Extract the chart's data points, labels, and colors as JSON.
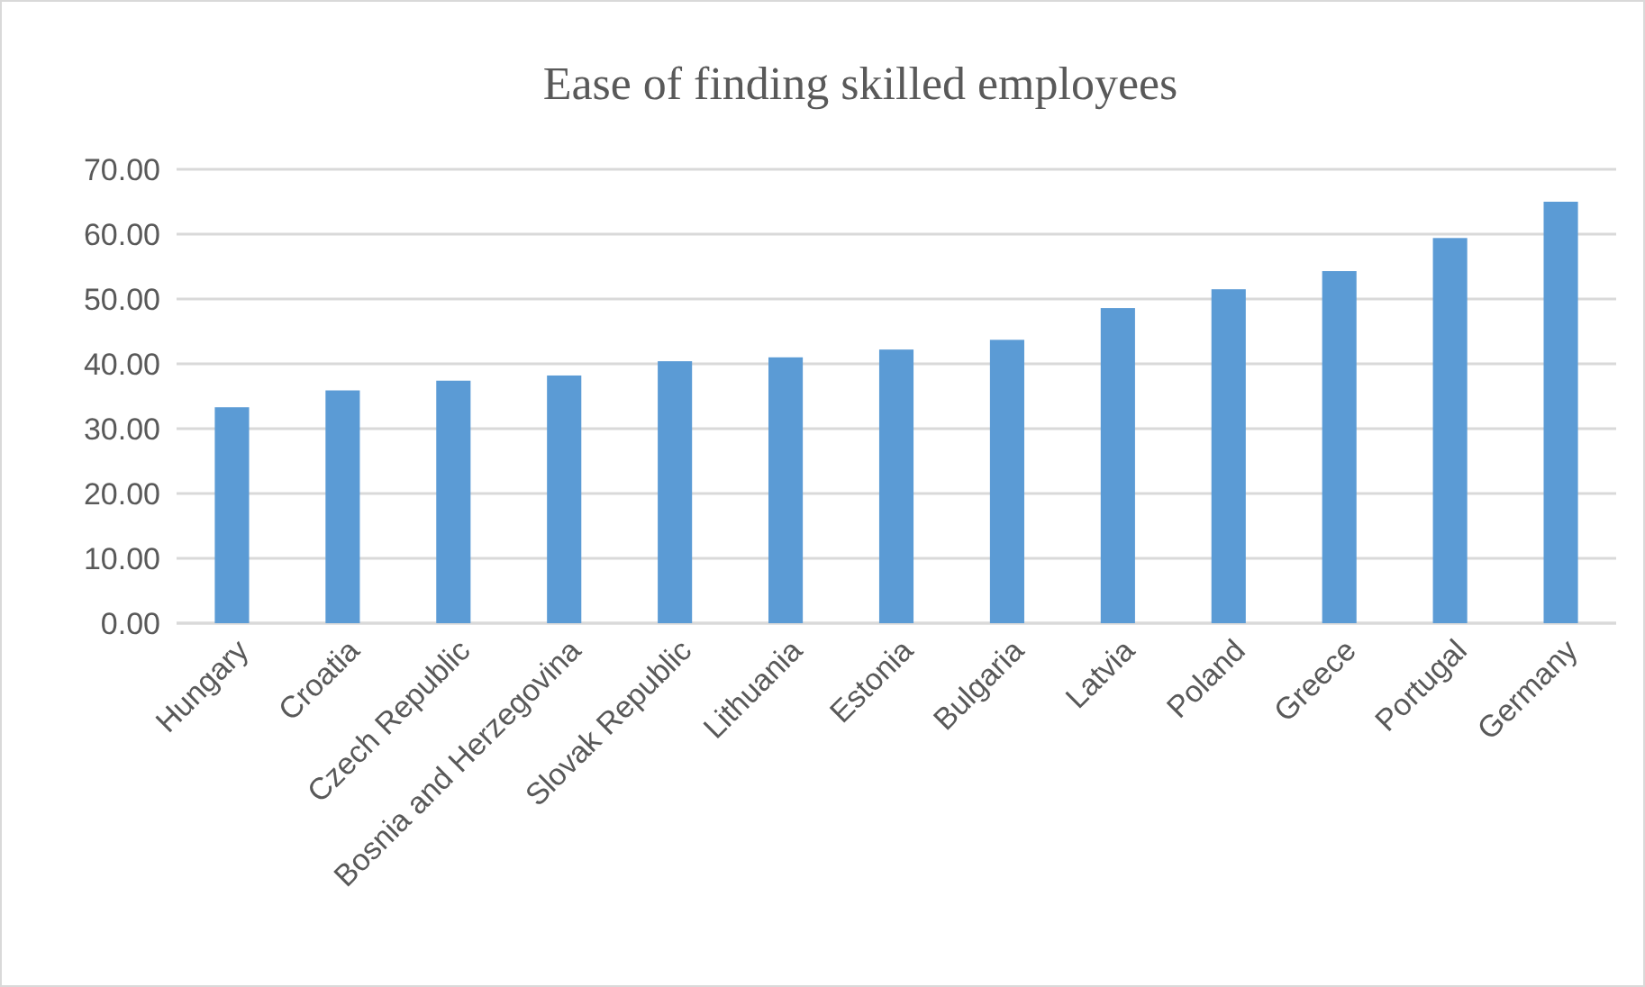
{
  "chart_data": {
    "type": "bar",
    "title": "Ease of finding skilled employees",
    "categories": [
      "Hungary",
      "Croatia",
      "Czech Republic",
      "Bosnia and Herzegovina",
      "Slovak Republic",
      "Lithuania",
      "Estonia",
      "Bulgaria",
      "Latvia",
      "Poland",
      "Greece",
      "Portugal",
      "Germany"
    ],
    "values": [
      33.3,
      35.9,
      37.4,
      38.2,
      40.4,
      41.0,
      42.2,
      43.7,
      48.6,
      51.5,
      54.3,
      59.4,
      65.0
    ],
    "color": "#5b9bd5",
    "ylim": [
      0,
      70
    ],
    "yticks": [
      {
        "value": 0,
        "label": "0.00"
      },
      {
        "value": 10,
        "label": "10.00"
      },
      {
        "value": 20,
        "label": "20.00"
      },
      {
        "value": 30,
        "label": "30.00"
      },
      {
        "value": 40,
        "label": "40.00"
      },
      {
        "value": 50,
        "label": "50.00"
      },
      {
        "value": 60,
        "label": "60.00"
      },
      {
        "value": 70,
        "label": "70.00"
      }
    ],
    "grid": "y"
  }
}
